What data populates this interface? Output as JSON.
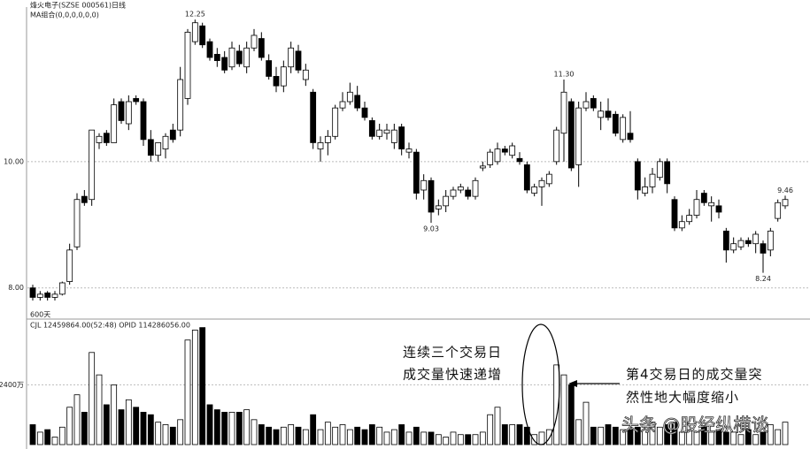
{
  "chart_data": {
    "type": "candlestick",
    "title": "烽火电子(SZSE 000561)日线",
    "indicator": "MA组合(0,0,0,0,0,0)",
    "period_label": "600天",
    "volume_label": "CJL 12459864.00(52:48)   OPID 114286056.00",
    "ylim": [
      7.59,
      12.42
    ],
    "yticks": [
      {
        "value": 8,
        "label": "8.00"
      },
      {
        "value": 10,
        "label": "10.00"
      }
    ],
    "volume_ylim": [
      0,
      4900
    ],
    "volume_yticks": [
      {
        "value": 2400,
        "label": "2400万"
      }
    ],
    "grid": true,
    "up_color": "#ffffff",
    "down_color": "#000000",
    "price_labels": [
      12.25,
      {
        "value": 11.3,
        "label": "11.30"
      },
      9.03,
      9.46,
      8.24
    ],
    "open": [
      8.0,
      7.85,
      7.92,
      7.85,
      7.9,
      8.1,
      8.65,
      9.45,
      9.4,
      10.3,
      10.45,
      10.3,
      10.95,
      10.6,
      11.0,
      10.95,
      10.35,
      10.1,
      10.2,
      10.5,
      10.5,
      11.0,
      11.9,
      12.15,
      11.9,
      11.7,
      11.65,
      11.5,
      11.75,
      11.5,
      11.8,
      11.95,
      11.6,
      11.35,
      11.2,
      11.5,
      11.75,
      11.3,
      11.1,
      10.2,
      10.3,
      10.4,
      10.85,
      10.95,
      11.05,
      10.85,
      10.65,
      10.4,
      10.45,
      10.3,
      10.55,
      10.15,
      10.15,
      9.55,
      9.7,
      9.25,
      9.3,
      9.45,
      9.55,
      9.55,
      9.45,
      9.9,
      9.95,
      10.0,
      10.2,
      10.1,
      10.05,
      9.95,
      9.5,
      9.6,
      9.65,
      10.0,
      10.45,
      10.95,
      9.95,
      10.85,
      11.0,
      10.7,
      10.8,
      10.75,
      10.35,
      10.45,
      10.0,
      9.5,
      9.6,
      9.75,
      10.0,
      9.4,
      8.95,
      9.05,
      9.15,
      9.5,
      9.3,
      9.3,
      8.9,
      8.6,
      8.65,
      8.75,
      8.7,
      8.7,
      8.6,
      9.1,
      9.3
    ],
    "high": [
      8.05,
      7.95,
      7.95,
      7.95,
      8.1,
      8.7,
      9.5,
      9.55,
      10.5,
      10.45,
      10.5,
      11.0,
      11.0,
      11.05,
      11.05,
      11.0,
      10.5,
      10.3,
      10.45,
      10.6,
      11.5,
      12.1,
      12.25,
      12.2,
      11.95,
      11.8,
      11.75,
      11.9,
      11.85,
      11.9,
      12.1,
      12.05,
      11.7,
      11.5,
      11.6,
      11.9,
      11.85,
      11.55,
      11.15,
      10.4,
      10.5,
      10.9,
      11.1,
      11.25,
      11.2,
      10.95,
      10.7,
      10.6,
      10.6,
      10.6,
      10.6,
      10.3,
      10.2,
      9.8,
      9.75,
      9.4,
      9.55,
      9.6,
      9.65,
      9.6,
      9.75,
      10.0,
      10.2,
      10.3,
      10.25,
      10.3,
      10.15,
      10.0,
      9.65,
      9.75,
      9.85,
      10.55,
      11.3,
      11.0,
      10.95,
      11.1,
      11.05,
      10.95,
      11.0,
      10.8,
      10.75,
      10.8,
      10.05,
      9.75,
      9.9,
      10.05,
      10.05,
      9.45,
      9.15,
      9.25,
      9.55,
      9.55,
      9.45,
      9.4,
      8.95,
      8.8,
      8.8,
      8.8,
      8.9,
      8.75,
      8.95,
      9.4,
      9.46
    ],
    "low": [
      7.8,
      7.8,
      7.8,
      7.8,
      7.88,
      8.05,
      8.6,
      9.3,
      9.3,
      10.2,
      10.25,
      10.3,
      10.6,
      10.5,
      10.9,
      10.25,
      10.0,
      10.0,
      10.05,
      10.3,
      10.4,
      10.9,
      11.85,
      11.8,
      11.6,
      11.5,
      11.4,
      11.45,
      11.5,
      11.4,
      11.75,
      11.6,
      11.3,
      11.1,
      11.1,
      11.4,
      11.4,
      11.2,
      10.2,
      10.0,
      10.1,
      10.35,
      10.8,
      10.9,
      10.8,
      10.65,
      10.35,
      10.35,
      10.35,
      10.2,
      10.1,
      10.05,
      9.4,
      9.4,
      9.03,
      9.15,
      9.2,
      9.4,
      9.5,
      9.4,
      9.4,
      9.85,
      9.9,
      9.95,
      10.1,
      10.05,
      9.95,
      9.5,
      9.45,
      9.3,
      9.6,
      9.95,
      10.0,
      9.85,
      9.6,
      10.8,
      10.8,
      10.5,
      10.65,
      10.4,
      10.3,
      10.3,
      9.4,
      9.45,
      9.5,
      9.7,
      9.5,
      8.9,
      8.9,
      9.0,
      9.1,
      9.3,
      9.05,
      9.1,
      8.4,
      8.55,
      8.6,
      8.65,
      8.55,
      8.24,
      8.5,
      9.05,
      9.25
    ],
    "close": [
      7.85,
      7.9,
      7.85,
      7.9,
      8.08,
      8.6,
      9.4,
      9.35,
      10.5,
      10.4,
      10.3,
      10.9,
      10.65,
      10.95,
      10.95,
      10.35,
      10.1,
      10.3,
      10.4,
      10.35,
      11.3,
      12.05,
      12.2,
      11.85,
      11.65,
      11.6,
      11.45,
      11.8,
      11.55,
      11.8,
      12.0,
      11.65,
      11.35,
      11.2,
      11.5,
      11.8,
      11.45,
      11.45,
      10.3,
      10.3,
      10.4,
      10.85,
      10.95,
      11.1,
      10.85,
      10.7,
      10.4,
      10.5,
      10.5,
      10.5,
      10.2,
      10.2,
      9.5,
      9.7,
      9.2,
      9.3,
      9.45,
      9.55,
      9.6,
      9.45,
      9.7,
      9.93,
      10.15,
      10.2,
      10.15,
      10.25,
      10.0,
      9.55,
      9.6,
      9.7,
      9.8,
      10.5,
      11.1,
      9.9,
      10.85,
      10.95,
      10.85,
      10.8,
      10.7,
      10.45,
      10.7,
      10.35,
      9.55,
      9.6,
      9.8,
      10.0,
      9.65,
      8.95,
      9.05,
      9.15,
      9.4,
      9.35,
      9.35,
      9.2,
      8.6,
      8.7,
      8.75,
      8.7,
      8.85,
      8.55,
      8.9,
      9.35,
      9.4
    ],
    "volume": [
      800,
      500,
      600,
      300,
      700,
      1500,
      2000,
      1300,
      3700,
      2800,
      1600,
      2400,
      1400,
      1800,
      1500,
      1300,
      1200,
      900,
      800,
      700,
      1000,
      4200,
      4600,
      4700,
      1600,
      1400,
      1300,
      1300,
      1300,
      1400,
      1000,
      800,
      700,
      600,
      700,
      800,
      700,
      600,
      1200,
      600,
      900,
      700,
      800,
      600,
      700,
      600,
      800,
      700,
      500,
      600,
      800,
      500,
      700,
      500,
      500,
      400,
      300,
      500,
      400,
      400,
      400,
      500,
      1200,
      1500,
      800,
      800,
      800,
      700,
      400,
      500,
      600,
      3200,
      2800,
      2400,
      1000,
      1700,
      700,
      700,
      800,
      700,
      600,
      600,
      700,
      600,
      900,
      700,
      800,
      900,
      500,
      600,
      500,
      700,
      500,
      600,
      500,
      500,
      400,
      600,
      400,
      500,
      800,
      600,
      900
    ],
    "annotations": [
      {
        "lines": [
          "连续三个交易日",
          "成交量快速递增"
        ]
      },
      {
        "lines": [
          "第4交易日的成交量突",
          "然性地大幅度缩小"
        ]
      }
    ],
    "watermark": "头条 @股经纵横谈"
  }
}
